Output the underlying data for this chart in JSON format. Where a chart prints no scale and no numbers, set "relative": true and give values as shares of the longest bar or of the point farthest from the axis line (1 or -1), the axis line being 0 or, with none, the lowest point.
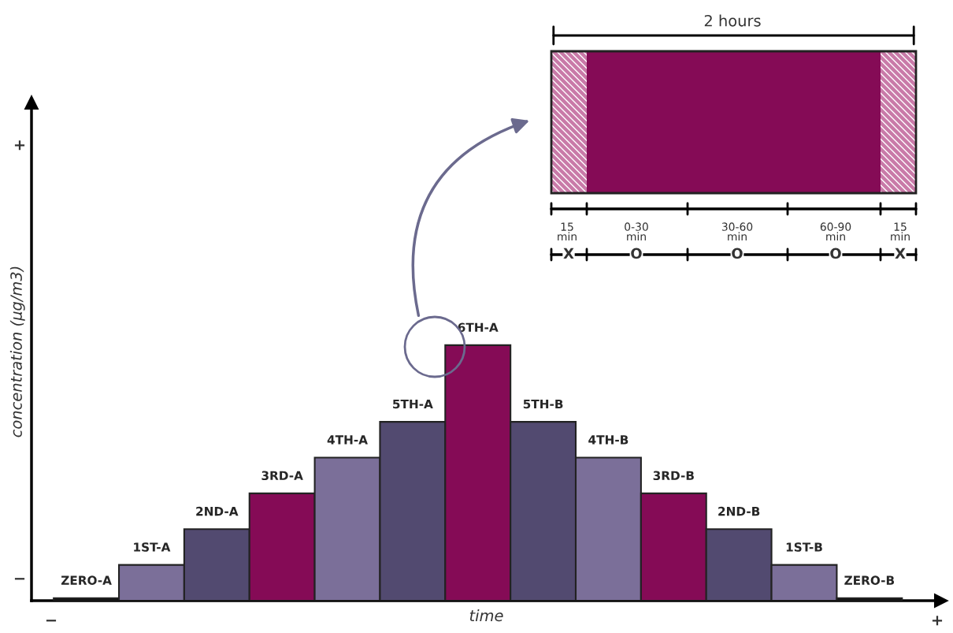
{
  "chart_data": {
    "type": "bar",
    "relative": true,
    "categories": [
      "ZERO-A",
      "1ST-A",
      "2ND-A",
      "3RD-A",
      "4TH-A",
      "5TH-A",
      "6TH-A",
      "5TH-B",
      "4TH-B",
      "3RD-B",
      "2ND-B",
      "1ST-B",
      "ZERO-B"
    ],
    "values": [
      0.01,
      0.14,
      0.28,
      0.42,
      0.56,
      0.7,
      1,
      0.7,
      0.56,
      0.42,
      0.28,
      0.14,
      0.01
    ],
    "colors": [
      "#111111",
      "#7b6f99",
      "#524a70",
      "#850b56",
      "#7b6f99",
      "#524a70",
      "#850b56",
      "#524a70",
      "#7b6f99",
      "#850b56",
      "#524a70",
      "#7b6f99",
      "#111111"
    ],
    "xlabel": "time",
    "ylabel": "concentration (µg/m3)",
    "annotations": [
      "+",
      "−",
      "−",
      "+",
      "2 hours",
      "15\nmin",
      "0-30\nmin",
      "30-60\nmin",
      "60-90\nmin",
      "15\nmin",
      "X",
      "O",
      "O",
      "O",
      "X"
    ],
    "legend": false
  }
}
